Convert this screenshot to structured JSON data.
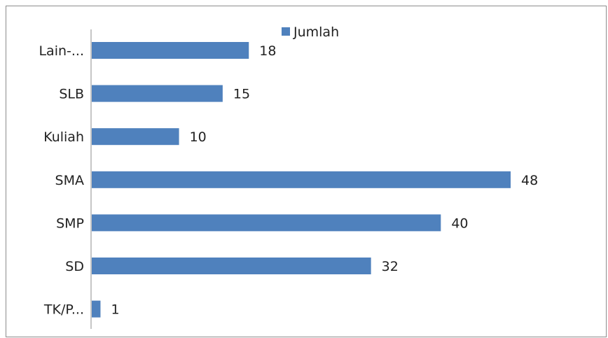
{
  "chart_data": {
    "type": "bar",
    "orientation": "horizontal",
    "categories": [
      "Lain-...",
      "SLB",
      "Kuliah",
      "SMA",
      "SMP",
      "SD",
      "TK/P..."
    ],
    "series": [
      {
        "name": "Jumlah",
        "values": [
          18,
          15,
          10,
          48,
          40,
          32,
          1
        ],
        "color": "#4f81bd"
      }
    ],
    "legend": "top",
    "grid": false,
    "title": "",
    "xlabel": "",
    "ylabel": ""
  }
}
